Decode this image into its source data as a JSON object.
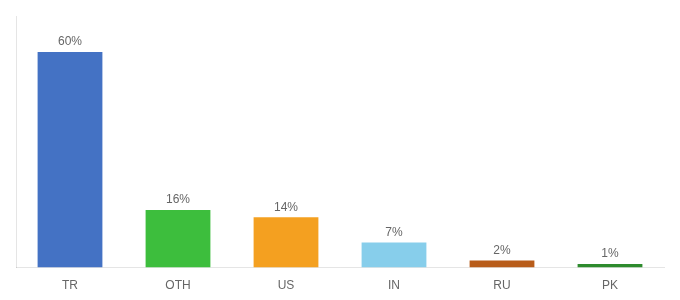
{
  "chart_data": {
    "type": "bar",
    "categories": [
      "TR",
      "OTH",
      "US",
      "IN",
      "RU",
      "PK"
    ],
    "values": [
      60,
      16,
      14,
      7,
      2,
      1
    ],
    "value_labels": [
      "60%",
      "16%",
      "14%",
      "7%",
      "2%",
      "1%"
    ],
    "colors": [
      "#4472C4",
      "#3DBE3D",
      "#F4A020",
      "#87CEEB",
      "#B85C1A",
      "#2E8B2E"
    ],
    "ylim": [
      0,
      70
    ],
    "grid": false,
    "data_labels": true,
    "tick_labels": "x"
  }
}
